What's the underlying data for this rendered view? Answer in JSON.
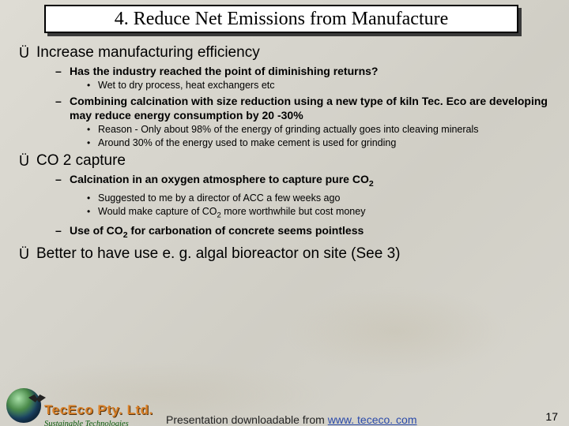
{
  "title": "4. Reduce Net Emissions from Manufacture",
  "b1": {
    "text": "Increase manufacturing efficiency"
  },
  "b1_1": {
    "text": "Has the industry reached the point of diminishing returns?"
  },
  "b1_1_1": {
    "text": "Wet to dry process, heat exchangers etc"
  },
  "b1_2": {
    "text": "Combining calcination with size reduction using a new type of kiln Tec. Eco are developing may reduce energy consumption by 20 -30%"
  },
  "b1_2_1": {
    "text": "Reason - Only about 98% of the energy of grinding actually goes into cleaving minerals"
  },
  "b1_2_2": {
    "text": "Around 30% of the energy used to make cement is used for grinding"
  },
  "b2": {
    "text": "CO 2 capture"
  },
  "b2_1_pre": "Calcination in an oxygen atmosphere to capture pure CO",
  "b2_1_1": {
    "text": "Suggested to me by a director of ACC a few weeks ago"
  },
  "b2_1_2_pre": "Would make capture of CO",
  "b2_1_2_post": " more worthwhile but cost money",
  "b2_2_pre": "Use of CO",
  "b2_2_post": " for carbonation of concrete seems pointless",
  "b3": {
    "text": "Better to have use e. g. algal bioreactor on site (See 3)"
  },
  "footer": {
    "brand": "TecEco Pty. Ltd.",
    "tagline": "Sustainable Technologies",
    "dl_pre": "Presentation downloadable from ",
    "dl_link": "www. tececo. com",
    "page": "17"
  },
  "sub2": "2"
}
